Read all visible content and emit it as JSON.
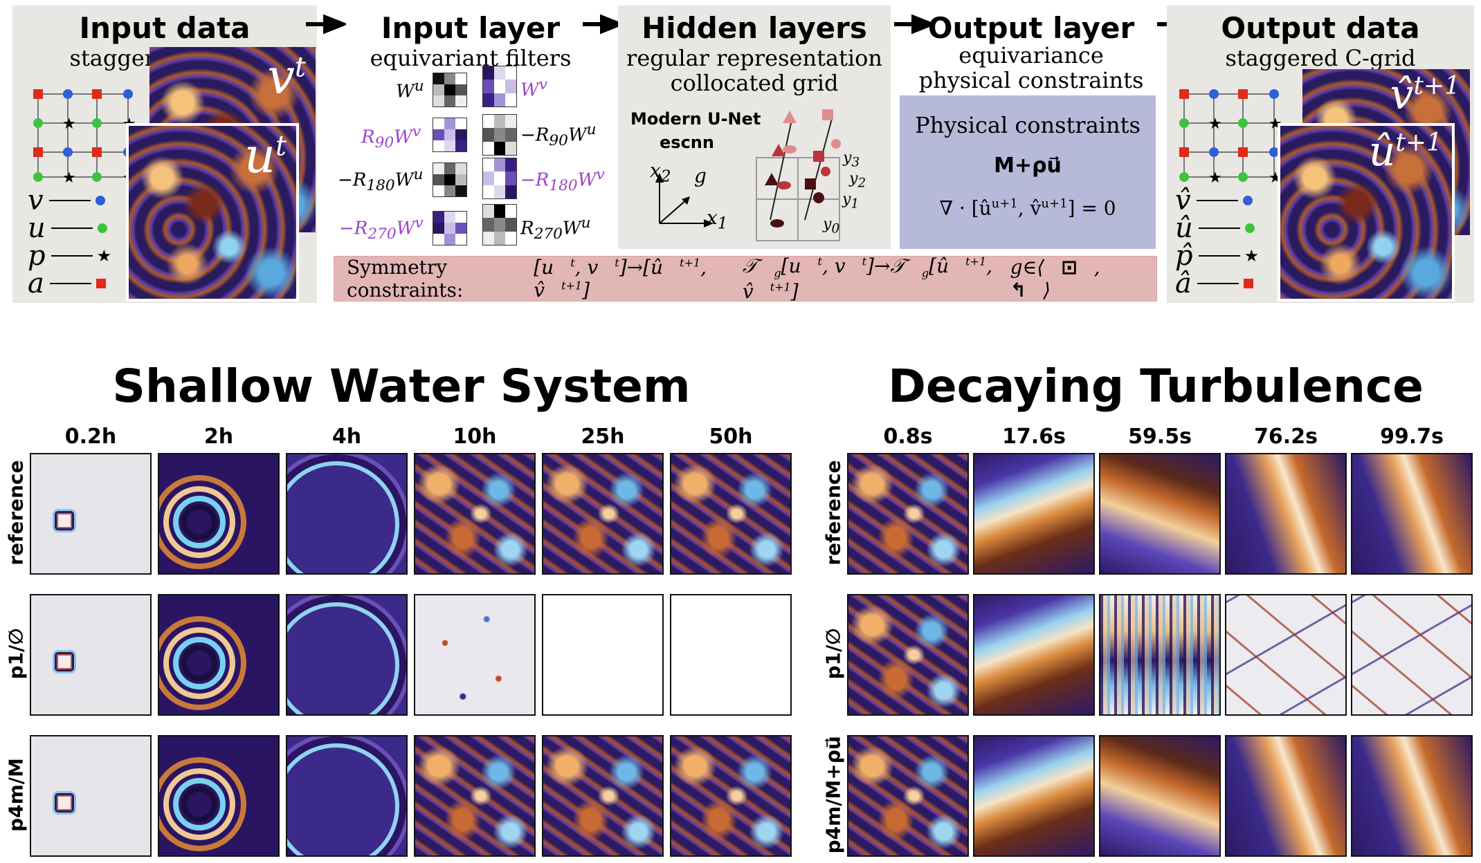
{
  "pipeline": {
    "input_data": {
      "title": "Input data",
      "subtitle": "staggered  C-grid",
      "field_back": "v",
      "field_back_sup": "t",
      "field_front": "u",
      "field_front_sup": "t",
      "legend": [
        {
          "sym": "v",
          "marker": "blue-circle"
        },
        {
          "sym": "u",
          "marker": "green-circle"
        },
        {
          "sym": "p",
          "marker": "black-star"
        },
        {
          "sym": "a",
          "marker": "red-square"
        }
      ]
    },
    "input_layer": {
      "title": "Input layer",
      "subtitle": "equivariant  filters",
      "filters": [
        "W",
        "u",
        "W",
        "v",
        "R",
        "90",
        "W",
        "v",
        "−R",
        "90",
        "W",
        "u",
        "−R",
        "180",
        "W",
        "u",
        "−R",
        "180",
        "W",
        "v",
        "−R",
        "270",
        "W",
        "v",
        "R",
        "270",
        "W",
        "u"
      ]
    },
    "hidden_layers": {
      "title": "Hidden layers",
      "subtitle1": "regular  representation",
      "subtitle2": "collocated  grid",
      "net1": "Modern U-Net",
      "net2": "escnn",
      "axis_x2": "x",
      "axis_x2_sub": "2",
      "axis_g": "g",
      "axis_x1": "x",
      "axis_x1_sub": "1",
      "y_labels": [
        "y",
        "3",
        "y",
        "2",
        "y",
        "1",
        "y",
        "0"
      ]
    },
    "output_layer": {
      "title": "Output layer",
      "subtitle1": "equivariance",
      "subtitle2": "physical  constraints",
      "box_title": "Physical  constraints",
      "box_eq1": "M+ρu⃗",
      "box_eq2": "∇ · [û",
      "box_eq2b": "u+1",
      "box_eq2c": ", v̂",
      "box_eq2d": "u+1",
      "box_eq2e": "] = 0"
    },
    "output_data": {
      "title": "Output data",
      "subtitle": "staggered  C-grid",
      "field_back": "v̂",
      "field_back_sup": "t+1",
      "field_front": "û",
      "field_front_sup": "t+1",
      "legend": [
        {
          "sym": "v̂",
          "marker": "blue-circle"
        },
        {
          "sym": "û",
          "marker": "green-circle"
        },
        {
          "sym": "p̂",
          "marker": "black-star"
        },
        {
          "sym": "â",
          "marker": "red-square"
        }
      ]
    },
    "symmetry_bar": {
      "label": "Symmetry  constraints:",
      "eq1": "[u",
      "eq1_sup1": "t",
      "eq1_mid": ", v",
      "eq1_sup2": "t",
      "eq1_rest": "]→[û",
      "eq1_sup3": "t+1",
      "eq1_mid2": ", v̂",
      "eq1_sup4": "t+1",
      "eq1_end": "]",
      "eq2": "𝒯",
      "eq2_sub": "g",
      "eq2_rest": "[u",
      "eq2_sup1": "t",
      "eq2_mid": ", v",
      "eq2_sup2": "t",
      "eq2_arr": "]→𝒯",
      "eq2_sub2": "g",
      "eq2_rest2": "[û",
      "eq2_sup3": "t+1",
      "eq2_mid2": ", v̂",
      "eq2_sup4": "t+1",
      "eq2_end": "]",
      "eq3": "g∈⟨",
      "eq3_end": "⟩"
    }
  },
  "shallow_water": {
    "title": "Shallow Water System",
    "columns": [
      "0.2h",
      "2h",
      "4h",
      "10h",
      "25h",
      "50h"
    ],
    "rows": [
      "reference",
      "p1/∅",
      "p4m/M"
    ]
  },
  "decaying_turbulence": {
    "title": "Decaying Turbulence",
    "columns": [
      "0.8s",
      "17.6s",
      "59.5s",
      "76.2s",
      "99.7s"
    ],
    "rows": [
      "reference",
      "p1/∅",
      "p4m/M+ρu⃗"
    ]
  },
  "colors": {
    "panel_bg": "#e8e7e3",
    "physics_box": "#b7b9d9",
    "symmetry_bar": "#e3b6b6",
    "filter_purple": "#9b45c9"
  }
}
